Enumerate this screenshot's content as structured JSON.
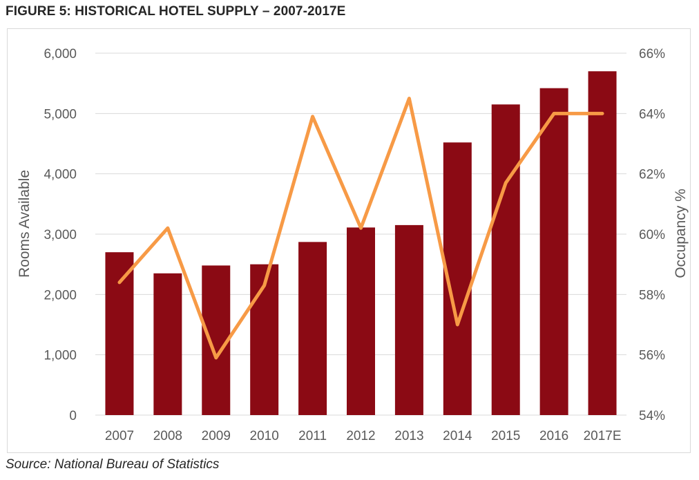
{
  "figure": {
    "title": "FIGURE 5: HISTORICAL HOTEL SUPPLY – 2007-2017E",
    "source": "Source: National Bureau of Statistics"
  },
  "colors": {
    "bar": "#8b0a14",
    "line": "#f79a46",
    "grid": "#d9d9d9",
    "tick_text": "#595959"
  },
  "chart_data": {
    "type": "bar",
    "categories": [
      "2007",
      "2008",
      "2009",
      "2010",
      "2011",
      "2012",
      "2013",
      "2014",
      "2015",
      "2016",
      "2017E"
    ],
    "series": [
      {
        "type": "bar",
        "axis": "left",
        "values": [
          2700,
          2350,
          2480,
          2500,
          2870,
          3110,
          3150,
          4520,
          5150,
          5420,
          5700
        ]
      },
      {
        "type": "line",
        "axis": "right",
        "values": [
          58.4,
          60.2,
          55.9,
          58.3,
          63.9,
          60.2,
          64.5,
          57.0,
          61.7,
          64.0,
          64.0
        ]
      }
    ],
    "ylabel": "Rooms Available",
    "ylim": [
      0,
      6000
    ],
    "yticks": [
      "0",
      "1,000",
      "2,000",
      "3,000",
      "4,000",
      "5,000",
      "6,000"
    ],
    "y2label": "Occupancy %",
    "y2lim": [
      54,
      66
    ],
    "y2ticks": [
      "54%",
      "56%",
      "58%",
      "60%",
      "62%",
      "64%",
      "66%"
    ],
    "grid": true,
    "legend": "none"
  }
}
